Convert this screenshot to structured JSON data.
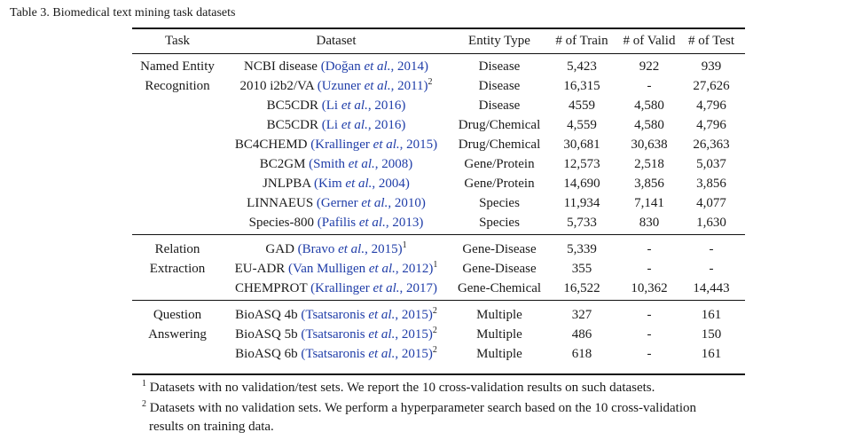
{
  "caption": "Table 3. Biomedical text mining task datasets",
  "headers": {
    "task": "Task",
    "dataset": "Dataset",
    "entity_type": "Entity Type",
    "train": "# of Train",
    "valid": "# of Valid",
    "test": "# of Test"
  },
  "groups": [
    {
      "task_lines": [
        "Named Entity",
        "Recognition"
      ],
      "rows": [
        {
          "name": "NCBI disease",
          "cite_author": "Doğan",
          "cite_year": ", 2014)",
          "sup": "",
          "entity": "Disease",
          "train": "5,423",
          "valid": "922",
          "test": "939"
        },
        {
          "name": "2010 i2b2/VA",
          "cite_author": "Uzuner",
          "cite_year": ", 2011)",
          "sup": "2",
          "entity": "Disease",
          "train": "16,315",
          "valid": "-",
          "test": "27,626"
        },
        {
          "name": "BC5CDR",
          "cite_author": "Li",
          "cite_year": ", 2016)",
          "sup": "",
          "entity": "Disease",
          "train": "4559",
          "valid": "4,580",
          "test": "4,796"
        },
        {
          "name": "BC5CDR",
          "cite_author": "Li",
          "cite_year": ", 2016)",
          "sup": "",
          "entity": "Drug/Chemical",
          "train": "4,559",
          "valid": "4,580",
          "test": "4,796"
        },
        {
          "name": "BC4CHEMD",
          "cite_author": "Krallinger",
          "cite_year": ", 2015)",
          "sup": "",
          "entity": "Drug/Chemical",
          "train": "30,681",
          "valid": "30,638",
          "test": "26,363"
        },
        {
          "name": "BC2GM",
          "cite_author": "Smith",
          "cite_year": ", 2008)",
          "sup": "",
          "entity": "Gene/Protein",
          "train": "12,573",
          "valid": "2,518",
          "test": "5,037"
        },
        {
          "name": "JNLPBA",
          "cite_author": "Kim",
          "cite_year": ", 2004)",
          "sup": "",
          "entity": "Gene/Protein",
          "train": "14,690",
          "valid": "3,856",
          "test": "3,856"
        },
        {
          "name": "LINNAEUS",
          "cite_author": "Gerner",
          "cite_year": ", 2010)",
          "sup": "",
          "entity": "Species",
          "train": "11,934",
          "valid": "7,141",
          "test": "4,077"
        },
        {
          "name": "Species-800",
          "cite_author": "Pafilis",
          "cite_year": ", 2013)",
          "sup": "",
          "entity": "Species",
          "train": "5,733",
          "valid": "830",
          "test": "1,630"
        }
      ]
    },
    {
      "task_lines": [
        "Relation",
        "Extraction"
      ],
      "rows": [
        {
          "name": "GAD",
          "cite_author": "Bravo",
          "cite_year": ", 2015)",
          "sup": "1",
          "entity": "Gene-Disease",
          "train": "5,339",
          "valid": "-",
          "test": "-"
        },
        {
          "name": "EU-ADR",
          "cite_author": "Van Mulligen",
          "cite_year": ", 2012)",
          "sup": "1",
          "entity": "Gene-Disease",
          "train": "355",
          "valid": "-",
          "test": "-"
        },
        {
          "name": "CHEMPROT",
          "cite_author": "Krallinger",
          "cite_year": ", 2017)",
          "sup": "",
          "entity": "Gene-Chemical",
          "train": "16,522",
          "valid": "10,362",
          "test": "14,443"
        }
      ]
    },
    {
      "task_lines": [
        "Question",
        "Answering"
      ],
      "rows": [
        {
          "name": "BioASQ 4b",
          "cite_author": "Tsatsaronis",
          "cite_year": ", 2015)",
          "sup": "2",
          "entity": "Multiple",
          "train": "327",
          "valid": "-",
          "test": "161"
        },
        {
          "name": "BioASQ 5b",
          "cite_author": "Tsatsaronis",
          "cite_year": ", 2015)",
          "sup": "2",
          "entity": "Multiple",
          "train": "486",
          "valid": "-",
          "test": "150"
        },
        {
          "name": "BioASQ 6b",
          "cite_author": "Tsatsaronis",
          "cite_year": ", 2015)",
          "sup": "2",
          "entity": "Multiple",
          "train": "618",
          "valid": "-",
          "test": "161"
        }
      ]
    }
  ],
  "cite_et_al": "et al.",
  "footnotes": [
    {
      "mark": "1",
      "lines": [
        "Datasets with no validation/test sets. We report the 10 cross-validation results on such datasets."
      ]
    },
    {
      "mark": "2",
      "lines": [
        "Datasets with no validation sets. We perform a hyperparameter search based on the 10 cross-validation",
        "results on training data."
      ]
    }
  ]
}
